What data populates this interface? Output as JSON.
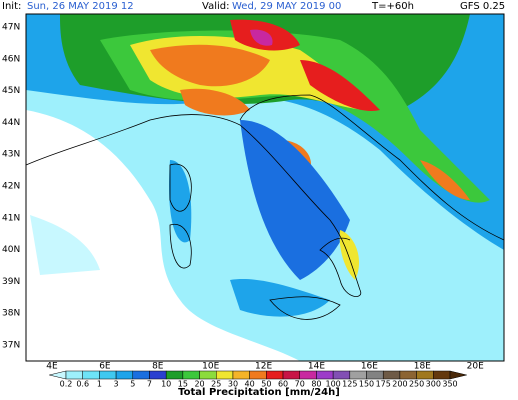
{
  "header": {
    "init_label": "Init:",
    "init_value": "Sun, 26 MAY 2019  12",
    "valid_label": "Valid:",
    "valid_value": "Wed, 29 MAY 2019  00",
    "lead": "T=+60h",
    "model": "GFS 0.25"
  },
  "map": {
    "lat_labels": [
      "47N",
      "46N",
      "45N",
      "44N",
      "43N",
      "42N",
      "41N",
      "40N",
      "39N",
      "38N",
      "37N"
    ],
    "lon_labels": [
      "4E",
      "6E",
      "8E",
      "10E",
      "12E",
      "14E",
      "16E",
      "18E",
      "20E"
    ]
  },
  "colorbar": {
    "title": "Total Precipitation [mm/24h]",
    "levels": [
      0.2,
      0.6,
      1,
      3,
      5,
      7,
      10,
      15,
      20,
      25,
      30,
      40,
      50,
      60,
      70,
      80,
      100,
      125,
      150,
      175,
      200,
      250,
      300,
      350
    ],
    "colors": [
      "#c8f8ff",
      "#9ef0fc",
      "#6ee3f7",
      "#3fc9f0",
      "#1ea4ea",
      "#1a6fe0",
      "#2a3fd0",
      "#1e9e2a",
      "#3cc83c",
      "#8cdc3c",
      "#f0e630",
      "#f5b428",
      "#f07a1e",
      "#e61e1e",
      "#c81446",
      "#c828a0",
      "#9c3cc8",
      "#8250b4",
      "#a0a0a0",
      "#828282",
      "#6e5a46",
      "#8c6432",
      "#a0781e",
      "#64380c",
      "#4a2808"
    ]
  }
}
